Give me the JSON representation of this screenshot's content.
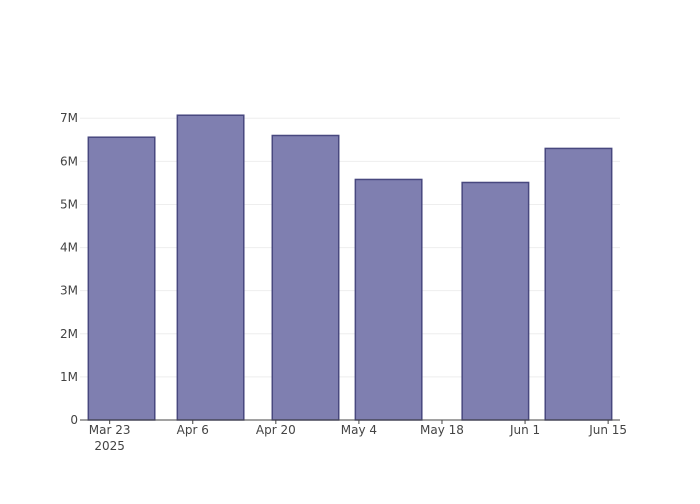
{
  "chart_data": {
    "type": "bar",
    "x": [
      "2025-03-25",
      "2025-04-09",
      "2025-04-25",
      "2025-05-09",
      "2025-05-27",
      "2025-06-10"
    ],
    "values": [
      6560000,
      7070000,
      6600000,
      5580000,
      5510000,
      6300000
    ],
    "color": "#7f7fb0",
    "xlim": [
      "2025-03-18",
      "2025-06-17"
    ],
    "xticks": [
      {
        "value": "2025-03-23",
        "label": "Mar 23\n2025"
      },
      {
        "value": "2025-04-06",
        "label": "Apr 6"
      },
      {
        "value": "2025-04-20",
        "label": "Apr 20"
      },
      {
        "value": "2025-05-04",
        "label": "May 4"
      },
      {
        "value": "2025-05-18",
        "label": "May 18"
      },
      {
        "value": "2025-06-01",
        "label": "Jun 1"
      },
      {
        "value": "2025-06-15",
        "label": "Jun 15"
      }
    ],
    "ylim": [
      0,
      7400000
    ],
    "yticks": [
      0,
      {
        "value": 1000000,
        "label": "1M"
      },
      {
        "value": 2000000,
        "label": "2M"
      },
      {
        "value": 3000000,
        "label": "3M"
      },
      {
        "value": 4000000,
        "label": "4M"
      },
      {
        "value": 5000000,
        "label": "5M"
      },
      {
        "value": 6000000,
        "label": "6M"
      },
      {
        "value": 7000000,
        "label": "7M"
      }
    ],
    "grid": true
  }
}
